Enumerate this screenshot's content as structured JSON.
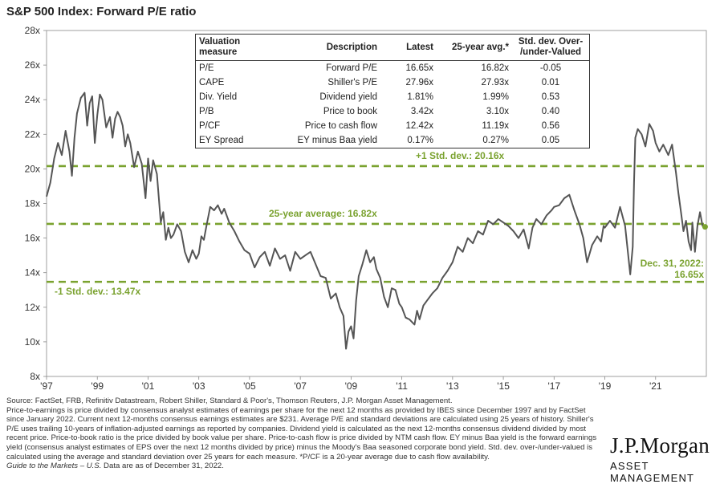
{
  "title": "S&P 500 Index: Forward P/E ratio",
  "colors": {
    "line": "#555555",
    "accent": "#7aa22f",
    "text": "#222222"
  },
  "table": {
    "headers": [
      "Valuation measure",
      "Description",
      "Latest",
      "25-year avg.*",
      "Std. dev. Over-\n/under-Valued"
    ],
    "rows": [
      [
        "P/E",
        "Forward P/E",
        "16.65x",
        "16.82x",
        "-0.05"
      ],
      [
        "CAPE",
        "Shiller's P/E",
        "27.96x",
        "27.93x",
        "0.01"
      ],
      [
        "Div. Yield",
        "Dividend yield",
        "1.81%",
        "1.99%",
        "0.53"
      ],
      [
        "P/B",
        "Price to book",
        "3.42x",
        "3.10x",
        "0.40"
      ],
      [
        "P/CF",
        "Price to cash flow",
        "12.42x",
        "11.19x",
        "0.56"
      ],
      [
        "EY Spread",
        "EY minus Baa yield",
        "0.17%",
        "0.27%",
        "0.05"
      ]
    ]
  },
  "chart_data": {
    "type": "line",
    "title": "S&P 500 Index: Forward P/E ratio",
    "ylim": [
      8,
      28
    ],
    "xlim": [
      1997.0,
      2023.0
    ],
    "y_ticks": [
      "8x",
      "10x",
      "12x",
      "14x",
      "16x",
      "18x",
      "20x",
      "22x",
      "24x",
      "26x",
      "28x"
    ],
    "x_ticks": [
      "'97",
      "'99",
      "'01",
      "'03",
      "'05",
      "'07",
      "'09",
      "'11",
      "'13",
      "'15",
      "'17",
      "'19",
      "'21"
    ],
    "x_tick_values": [
      1997,
      1999,
      2001,
      2003,
      2005,
      2007,
      2009,
      2011,
      2013,
      2015,
      2017,
      2019,
      2021
    ],
    "grid": false,
    "reference_lines": [
      {
        "value": 20.16,
        "label": "+1 Std. dev.: 20.16x"
      },
      {
        "value": 16.82,
        "label": "25-year average: 16.82x"
      },
      {
        "value": 13.47,
        "label": "-1 Std. dev.: 13.47x"
      }
    ],
    "annotation": {
      "label_line1": "Dec. 31, 2022:",
      "label_line2": "16.65x",
      "x": 2022.95,
      "y": 16.65
    },
    "series": [
      {
        "x": [
          1997.0,
          1997.15,
          1997.3,
          1997.45,
          1997.6,
          1997.75,
          1997.9,
          1998.0,
          1998.1,
          1998.2,
          1998.35,
          1998.5,
          1998.6,
          1998.7,
          1998.8,
          1998.9,
          1999.0,
          1999.1,
          1999.2,
          1999.35,
          1999.5,
          1999.6,
          1999.7,
          1999.8,
          1999.9,
          2000.0,
          2000.1,
          2000.2,
          2000.3,
          2000.45,
          2000.6,
          2000.75,
          2000.9,
          2001.0,
          2001.1,
          2001.2,
          2001.35,
          2001.5,
          2001.6,
          2001.7,
          2001.8,
          2001.9,
          2002.0,
          2002.15,
          2002.3,
          2002.45,
          2002.6,
          2002.75,
          2002.9,
          2003.0,
          2003.1,
          2003.2,
          2003.3,
          2003.45,
          2003.6,
          2003.75,
          2003.9,
          2004.0,
          2004.2,
          2004.4,
          2004.6,
          2004.8,
          2005.0,
          2005.2,
          2005.4,
          2005.6,
          2005.8,
          2006.0,
          2006.2,
          2006.4,
          2006.6,
          2006.8,
          2007.0,
          2007.2,
          2007.4,
          2007.6,
          2007.8,
          2008.0,
          2008.2,
          2008.4,
          2008.55,
          2008.7,
          2008.8,
          2008.9,
          2009.0,
          2009.1,
          2009.2,
          2009.3,
          2009.45,
          2009.6,
          2009.75,
          2009.9,
          2010.0,
          2010.15,
          2010.3,
          2010.45,
          2010.6,
          2010.75,
          2010.9,
          2011.0,
          2011.15,
          2011.3,
          2011.5,
          2011.6,
          2011.7,
          2011.85,
          2012.0,
          2012.2,
          2012.4,
          2012.6,
          2012.8,
          2013.0,
          2013.2,
          2013.4,
          2013.6,
          2013.8,
          2014.0,
          2014.2,
          2014.4,
          2014.6,
          2014.8,
          2015.0,
          2015.2,
          2015.4,
          2015.6,
          2015.8,
          2016.0,
          2016.15,
          2016.3,
          2016.5,
          2016.7,
          2016.9,
          2017.0,
          2017.2,
          2017.4,
          2017.6,
          2017.8,
          2018.0,
          2018.15,
          2018.3,
          2018.5,
          2018.7,
          2018.85,
          2018.95,
          2019.0,
          2019.2,
          2019.4,
          2019.6,
          2019.8,
          2020.0,
          2020.1,
          2020.15,
          2020.2,
          2020.3,
          2020.45,
          2020.6,
          2020.75,
          2020.9,
          2021.0,
          2021.15,
          2021.3,
          2021.5,
          2021.65,
          2021.8,
          2021.9,
          2022.0,
          2022.1,
          2022.2,
          2022.3,
          2022.4,
          2022.45,
          2022.55,
          2022.65,
          2022.75,
          2022.85,
          2022.95
        ],
        "values": [
          18.4,
          19.2,
          20.6,
          21.5,
          20.8,
          22.2,
          21.0,
          19.6,
          21.8,
          23.2,
          24.1,
          24.4,
          22.5,
          23.8,
          24.2,
          21.5,
          23.1,
          24.3,
          24.0,
          22.4,
          23.0,
          21.8,
          22.9,
          23.3,
          23.0,
          22.5,
          21.3,
          22.0,
          21.5,
          20.1,
          21.0,
          20.3,
          18.3,
          20.6,
          19.3,
          20.5,
          19.7,
          16.9,
          17.5,
          15.9,
          16.6,
          16.0,
          16.2,
          16.8,
          16.4,
          15.2,
          14.6,
          15.3,
          14.8,
          15.1,
          16.1,
          15.9,
          16.7,
          17.8,
          17.6,
          17.9,
          17.4,
          17.7,
          16.9,
          16.4,
          15.8,
          15.3,
          15.1,
          14.3,
          14.9,
          15.2,
          14.4,
          15.4,
          14.8,
          15.0,
          14.1,
          15.2,
          14.8,
          15.0,
          15.2,
          14.5,
          13.8,
          13.7,
          12.5,
          12.8,
          12.0,
          11.5,
          9.6,
          10.6,
          10.9,
          10.2,
          12.4,
          13.8,
          14.5,
          15.3,
          14.6,
          14.9,
          14.2,
          13.7,
          12.6,
          12.0,
          13.1,
          13.0,
          12.2,
          12.0,
          11.4,
          11.3,
          11.0,
          11.8,
          11.3,
          12.1,
          12.4,
          12.8,
          13.1,
          13.7,
          14.1,
          14.6,
          15.5,
          15.2,
          16.0,
          15.7,
          16.4,
          16.2,
          17.0,
          16.8,
          17.1,
          16.9,
          16.7,
          16.4,
          16.0,
          16.5,
          15.4,
          16.6,
          17.1,
          16.8,
          17.3,
          17.6,
          17.8,
          17.9,
          18.3,
          18.5,
          17.6,
          16.8,
          16.0,
          14.6,
          15.6,
          16.1,
          15.8,
          16.7,
          16.6,
          17.0,
          16.6,
          17.8,
          16.7,
          13.9,
          15.5,
          19.2,
          21.8,
          22.3,
          22.0,
          21.3,
          22.6,
          22.2,
          21.5,
          21.0,
          21.4,
          20.8,
          21.4,
          19.8,
          18.6,
          17.5,
          16.4,
          17.0,
          15.8,
          15.3,
          16.9,
          15.2,
          16.7,
          17.5,
          16.7,
          16.65
        ]
      }
    ]
  },
  "footnotes": [
    "Source: FactSet, FRB, Refinitiv Datastream, Robert Shiller, Standard & Poor's, Thomson Reuters, J.P. Morgan Asset Management.",
    "Price-to-earnings is price divided by consensus analyst estimates of earnings per share for the next 12 months as provided by IBES since December 1997 and by FactSet since January 2022. Current next 12-months consensus earnings estimates are $231. Average P/E and standard deviations are calculated using 25 years of history. Shiller's P/E uses trailing 10-years of inflation-adjusted earnings as reported by companies. Dividend yield is calculated as the next 12-months consensus dividend divided by most recent price. Price-to-book ratio is the price divided by book value per share. Price-to-cash flow is price divided by NTM cash flow. EY minus Baa yield is the forward earnings yield (consensus analyst estimates of EPS over the next 12 months divided by price) minus the Moody's Baa seasoned corporate bond yield. Std. dev. over-/under-valued is calculated using the average and standard deviation over 25 years for each measure. *P/CF is a 20-year average due to cash flow availability."
  ],
  "guide": {
    "prefix": "Guide to the Markets – U.S.",
    "suffix": " Data are as of December 31, 2022."
  },
  "logo": {
    "name": "J.P.Morgan",
    "subtitle": "ASSET MANAGEMENT"
  }
}
